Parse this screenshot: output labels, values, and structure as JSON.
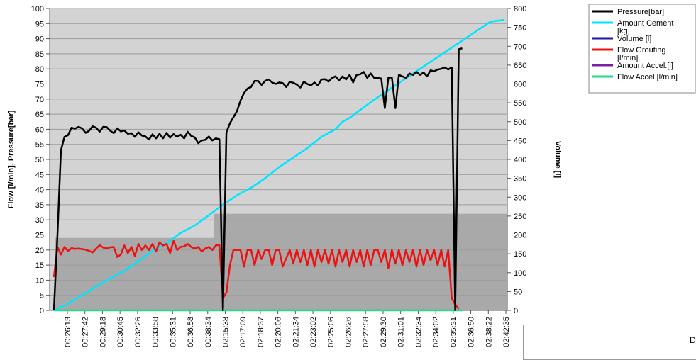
{
  "chart_data": {
    "type": "line",
    "ylabel_left": "Flow [l/min], Pressure[bar]",
    "ylabel_right": "Volume [l]",
    "ylim_left": [
      0,
      100
    ],
    "ylim_right": [
      0,
      800
    ],
    "left_ticks": [
      0,
      5,
      10,
      15,
      20,
      25,
      30,
      35,
      40,
      45,
      50,
      55,
      60,
      65,
      70,
      75,
      80,
      85,
      90,
      95,
      100
    ],
    "right_ticks": [
      0,
      50,
      100,
      150,
      200,
      250,
      300,
      350,
      400,
      450,
      500,
      550,
      600,
      650,
      700,
      750,
      800
    ],
    "x_tick_labels": [
      "00:26:13",
      "00:27:42",
      "00:29:18",
      "00:30:45",
      "00:32:26",
      "00:33:58",
      "00:35:31",
      "00:36:58",
      "00:38:34",
      "02:15:38",
      "02:17:09",
      "02:18:37",
      "02:20:06",
      "02:21:34",
      "02:23:02",
      "02:25:06",
      "02:26:26",
      "02:27:58",
      "02:29:30",
      "02:31:01",
      "02:32:34",
      "02:34:02",
      "02:35:31",
      "02:36:50",
      "02:38:22",
      "02:42:35"
    ],
    "grid": true,
    "legend_placement": "top-right",
    "shaded_regions": [
      {
        "x_from": 0,
        "x_to": 8.8,
        "y_left_top": 24
      },
      {
        "x_from": 8.8,
        "x_to": 25.2,
        "y_left_top": 32
      }
    ],
    "series": [
      {
        "name": "Pressure[bar]",
        "color": "#000000",
        "axis": "left",
        "points": [
          [
            0,
            0
          ],
          [
            0.25,
            25
          ],
          [
            0.5,
            53
          ],
          [
            0.75,
            57.5
          ],
          [
            1,
            58
          ],
          [
            1.25,
            60.5
          ],
          [
            1.5,
            60.2
          ],
          [
            1.75,
            60.8
          ],
          [
            2,
            60.3
          ],
          [
            2.25,
            58.8
          ],
          [
            2.5,
            59.5
          ],
          [
            2.75,
            61
          ],
          [
            3,
            60.5
          ],
          [
            3.25,
            59.2
          ],
          [
            3.5,
            60.8
          ],
          [
            3.75,
            60.7
          ],
          [
            4,
            59.5
          ],
          [
            4.25,
            58.7
          ],
          [
            4.5,
            60.3
          ],
          [
            4.75,
            59.3
          ],
          [
            5,
            59.6
          ],
          [
            5.25,
            58.5
          ],
          [
            5.5,
            58.7
          ],
          [
            5.75,
            57.5
          ],
          [
            6,
            59
          ],
          [
            6.25,
            57.9
          ],
          [
            6.5,
            57.6
          ],
          [
            6.75,
            56.6
          ],
          [
            7,
            58.3
          ],
          [
            7.25,
            57
          ],
          [
            7.5,
            58.5
          ],
          [
            7.75,
            57
          ],
          [
            8,
            58.8
          ],
          [
            8.25,
            57.2
          ],
          [
            8.5,
            58.4
          ],
          [
            8.75,
            57.5
          ],
          [
            9,
            58.2
          ],
          [
            9.25,
            57
          ],
          [
            9.5,
            59.2
          ],
          [
            9.75,
            57.8
          ],
          [
            10,
            57.3
          ],
          [
            10.25,
            55.4
          ],
          [
            10.5,
            56.3
          ],
          [
            10.75,
            56.5
          ],
          [
            11,
            57.6
          ],
          [
            11.25,
            56.3
          ],
          [
            11.5,
            57
          ],
          [
            11.75,
            56.7
          ],
          [
            12,
            0
          ],
          [
            12.25,
            59
          ],
          [
            12.5,
            62
          ],
          [
            12.75,
            64
          ],
          [
            13,
            66
          ],
          [
            13.25,
            69.5
          ],
          [
            13.5,
            72
          ],
          [
            13.75,
            73.5
          ],
          [
            14,
            74
          ],
          [
            14.25,
            76
          ],
          [
            14.5,
            76
          ],
          [
            14.75,
            74.7
          ],
          [
            15,
            76
          ],
          [
            15.25,
            76.5
          ],
          [
            15.5,
            75.5
          ],
          [
            15.75,
            75
          ],
          [
            16,
            75.5
          ],
          [
            16.25,
            75.3
          ],
          [
            16.5,
            74
          ],
          [
            16.75,
            75.7
          ],
          [
            17,
            75.4
          ],
          [
            17.25,
            74.8
          ],
          [
            17.5,
            73.8
          ],
          [
            17.75,
            75.8
          ],
          [
            18,
            75
          ],
          [
            18.25,
            74.5
          ],
          [
            18.5,
            75.5
          ],
          [
            18.75,
            74.5
          ],
          [
            19,
            76.5
          ],
          [
            19.25,
            76.6
          ],
          [
            19.5,
            75.8
          ],
          [
            19.75,
            77
          ],
          [
            20,
            77.5
          ],
          [
            20.25,
            76.2
          ],
          [
            20.5,
            77.5
          ],
          [
            20.75,
            76.5
          ],
          [
            21,
            78
          ],
          [
            21.25,
            75.5
          ],
          [
            21.5,
            78
          ],
          [
            21.75,
            78.2
          ],
          [
            22,
            79
          ],
          [
            22.25,
            77
          ],
          [
            22.5,
            78.5
          ],
          [
            22.75,
            77
          ],
          [
            23,
            77
          ],
          [
            23.25,
            76.8
          ],
          [
            23.5,
            67
          ],
          [
            23.75,
            77
          ],
          [
            24,
            77.2
          ],
          [
            24.25,
            67
          ],
          [
            24.5,
            78
          ],
          [
            24.75,
            77.5
          ],
          [
            25,
            77
          ],
          [
            25.25,
            78.5
          ],
          [
            25.5,
            78
          ],
          [
            25.75,
            79
          ],
          [
            26,
            78
          ],
          [
            26.25,
            78.8
          ],
          [
            26.5,
            77.5
          ],
          [
            26.75,
            79.5
          ],
          [
            27,
            79.2
          ],
          [
            27.25,
            79.8
          ],
          [
            27.5,
            80
          ],
          [
            27.75,
            80.5
          ],
          [
            28,
            79.8
          ],
          [
            28.25,
            80.5
          ],
          [
            28.5,
            0
          ],
          [
            28.75,
            86.5
          ],
          [
            29,
            86.8
          ]
        ]
      },
      {
        "name": "Amount Cement\n[kg]",
        "color": "#00e5ff",
        "axis": "right",
        "points": [
          [
            0,
            0
          ],
          [
            1,
            18
          ],
          [
            2,
            40
          ],
          [
            3,
            63
          ],
          [
            4,
            85
          ],
          [
            5,
            105
          ],
          [
            6,
            130
          ],
          [
            7,
            158
          ],
          [
            8,
            178
          ],
          [
            9,
            205
          ],
          [
            10,
            225
          ],
          [
            11,
            252
          ],
          [
            12,
            280
          ],
          [
            13,
            305
          ],
          [
            14,
            325
          ],
          [
            15,
            350
          ],
          [
            16,
            380
          ],
          [
            17,
            405
          ],
          [
            18,
            430
          ],
          [
            19,
            460
          ],
          [
            20,
            480
          ],
          [
            20.5,
            500
          ],
          [
            21,
            510
          ],
          [
            22,
            538
          ],
          [
            23,
            565
          ],
          [
            24,
            590
          ],
          [
            25,
            615
          ],
          [
            26,
            640
          ],
          [
            27,
            665
          ],
          [
            28,
            690
          ],
          [
            29,
            715
          ],
          [
            30,
            740
          ],
          [
            31,
            765
          ],
          [
            32,
            770
          ]
        ]
      },
      {
        "name": "Volume [l]",
        "color": "#1a1aa6",
        "axis": "right",
        "points": []
      },
      {
        "name": "Flow Grouting\n[l/min]",
        "color": "#ee1111",
        "axis": "left",
        "points": [
          [
            0,
            11
          ],
          [
            0.25,
            21
          ],
          [
            0.5,
            18.5
          ],
          [
            0.75,
            21
          ],
          [
            1,
            19.7
          ],
          [
            1.25,
            20.6
          ],
          [
            1.5,
            20.4
          ],
          [
            1.75,
            20.5
          ],
          [
            2,
            20.3
          ],
          [
            2.25,
            20.1
          ],
          [
            2.5,
            19.7
          ],
          [
            2.75,
            19.2
          ],
          [
            3,
            20.5
          ],
          [
            3.25,
            21.6
          ],
          [
            3.5,
            20.8
          ],
          [
            3.75,
            20.5
          ],
          [
            4,
            20.9
          ],
          [
            4.25,
            21
          ],
          [
            4.5,
            17.7
          ],
          [
            4.75,
            18.5
          ],
          [
            5,
            21.5
          ],
          [
            5.25,
            19
          ],
          [
            5.5,
            21
          ],
          [
            5.75,
            18
          ],
          [
            6,
            22
          ],
          [
            6.25,
            20
          ],
          [
            6.5,
            21.5
          ],
          [
            6.75,
            20
          ],
          [
            7,
            22
          ],
          [
            7.25,
            19.5
          ],
          [
            7.5,
            22.5
          ],
          [
            7.75,
            21.5
          ],
          [
            8,
            22
          ],
          [
            8.25,
            19
          ],
          [
            8.5,
            23
          ],
          [
            8.75,
            20
          ],
          [
            9,
            21
          ],
          [
            9.25,
            21.2
          ],
          [
            9.5,
            22
          ],
          [
            9.75,
            21
          ],
          [
            10,
            20.5
          ],
          [
            10.25,
            21
          ],
          [
            10.5,
            19.5
          ],
          [
            10.75,
            20.5
          ],
          [
            11,
            21
          ],
          [
            11.25,
            20
          ],
          [
            11.5,
            21.5
          ],
          [
            11.75,
            21.7
          ],
          [
            12,
            4
          ],
          [
            12.25,
            6
          ],
          [
            12.5,
            15
          ],
          [
            12.75,
            20
          ],
          [
            13,
            20
          ],
          [
            13.25,
            20
          ],
          [
            13.5,
            14.5
          ],
          [
            13.75,
            20
          ],
          [
            14,
            20
          ],
          [
            14.25,
            15
          ],
          [
            14.5,
            20
          ],
          [
            14.75,
            17
          ],
          [
            15,
            20
          ],
          [
            15.25,
            20
          ],
          [
            15.5,
            15
          ],
          [
            15.75,
            20
          ],
          [
            16,
            20
          ],
          [
            16.25,
            14.5
          ],
          [
            16.75,
            20
          ],
          [
            17,
            15.5
          ],
          [
            17.25,
            20
          ],
          [
            17.5,
            16
          ],
          [
            17.75,
            20
          ],
          [
            18,
            15
          ],
          [
            18.25,
            20
          ],
          [
            18.5,
            14.5
          ],
          [
            18.75,
            20
          ],
          [
            19,
            16
          ],
          [
            19.25,
            20
          ],
          [
            19.5,
            15.5
          ],
          [
            19.75,
            20
          ],
          [
            20,
            14.5
          ],
          [
            20.25,
            20
          ],
          [
            20.5,
            16
          ],
          [
            20.75,
            20
          ],
          [
            21,
            14.5
          ],
          [
            21.25,
            20
          ],
          [
            21.5,
            16
          ],
          [
            21.75,
            20
          ],
          [
            22,
            14.5
          ],
          [
            22.25,
            20
          ],
          [
            22.5,
            15
          ],
          [
            22.75,
            20
          ],
          [
            23,
            20
          ],
          [
            23.25,
            16
          ],
          [
            23.5,
            20
          ],
          [
            23.75,
            14
          ],
          [
            24,
            20
          ],
          [
            24.25,
            15.5
          ],
          [
            24.5,
            20
          ],
          [
            24.75,
            15
          ],
          [
            25,
            20
          ],
          [
            25.25,
            16
          ],
          [
            25.5,
            20
          ],
          [
            25.75,
            14.5
          ],
          [
            26,
            20
          ],
          [
            26.25,
            15
          ],
          [
            26.5,
            20
          ],
          [
            26.75,
            16.5
          ],
          [
            27,
            20
          ],
          [
            27.25,
            15
          ],
          [
            27.5,
            20
          ],
          [
            27.75,
            14.5
          ],
          [
            28,
            20
          ],
          [
            28.25,
            4
          ],
          [
            28.5,
            2
          ],
          [
            28.75,
            0.5
          ]
        ]
      },
      {
        "name": "Amount Accel.[l]",
        "color": "#7a1fa2",
        "axis": "right",
        "points": []
      },
      {
        "name": "Flow Accel.[l/min]",
        "color": "#22dd88",
        "axis": "left",
        "points": [
          [
            0,
            0
          ],
          [
            29,
            0
          ]
        ]
      }
    ]
  },
  "side_box": {
    "label": "D"
  }
}
